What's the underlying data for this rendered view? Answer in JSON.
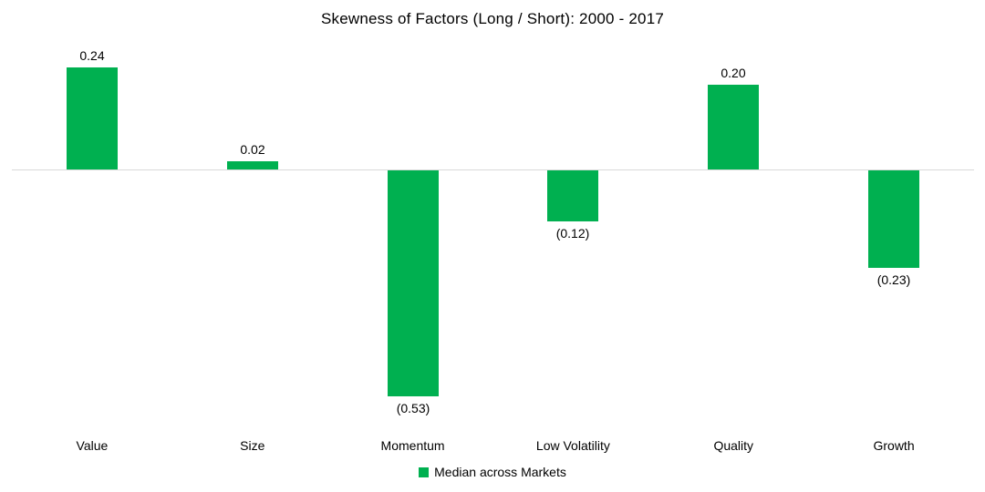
{
  "chart_data": {
    "type": "bar",
    "title": "Skewness of Factors (Long / Short): 2000 - 2017",
    "categories": [
      "Value",
      "Size",
      "Momentum",
      "Low Volatility",
      "Quality",
      "Growth"
    ],
    "series": [
      {
        "name": "Median across Markets",
        "values": [
          0.24,
          0.02,
          -0.53,
          -0.12,
          0.2,
          -0.23
        ]
      }
    ],
    "data_labels": [
      "0.24",
      "0.02",
      "(0.53)",
      "(0.12)",
      "0.20",
      "(0.23)"
    ],
    "negative_label_format": "parentheses",
    "xlabel": "",
    "ylabel": "",
    "ylim": [
      -0.61,
      0.31
    ],
    "grid": false,
    "legend_position": "bottom",
    "bar_color": "#00B050"
  },
  "legend": {
    "label": "Median across Markets",
    "marker_color": "#00B050"
  },
  "colors": {
    "bar": "#00B050",
    "axis_line": "#D9D9D9",
    "text": "#000000",
    "background": "#FFFFFF"
  }
}
